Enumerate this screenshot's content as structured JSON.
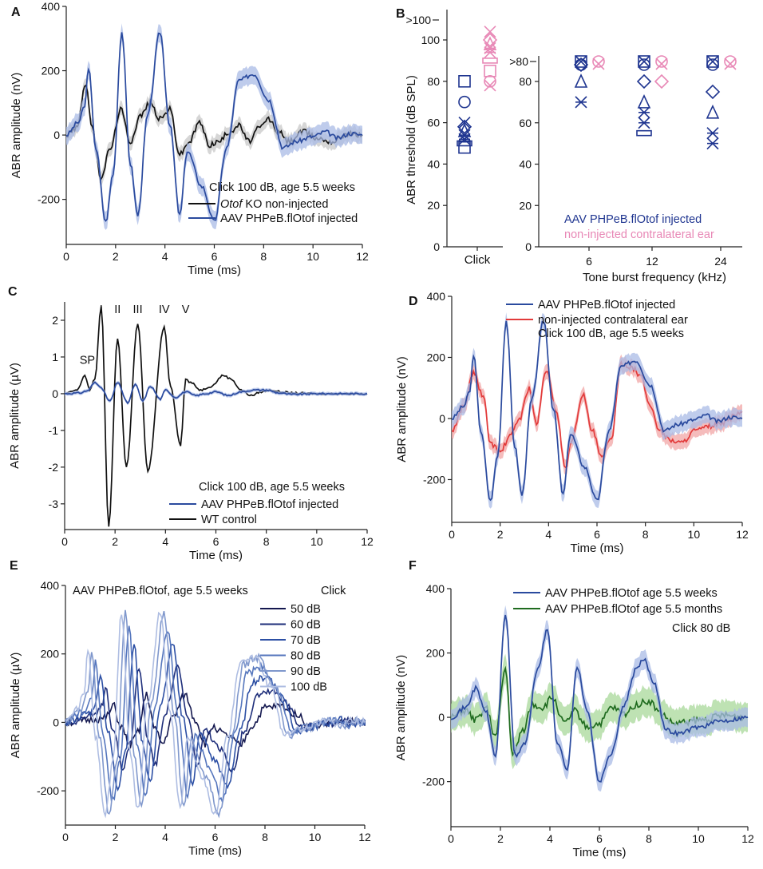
{
  "colors": {
    "injected": "#2a4a9e",
    "injected_band": "#a9bbe6",
    "ko": "#111111",
    "ko_band": "#c8c8c8",
    "contra": "#e23a3a",
    "contra_band": "#f2a6a6",
    "pink": "#e888b6",
    "navy": "#1f3590",
    "green": "#1f6b1f",
    "green_band": "#a8d89a",
    "db": [
      "#14184f",
      "#1e2e7a",
      "#2c4fa4",
      "#5576bd",
      "#7f97cc",
      "#aebde2"
    ]
  },
  "chart_data": [
    {
      "id": "A",
      "panel_label": "A",
      "type": "line",
      "xlabel": "Time (ms)",
      "ylabel": "ABR amplitude (nV)",
      "xlim": [
        0,
        12
      ],
      "ylim": [
        -340,
        400
      ],
      "xticks": [
        0,
        2,
        4,
        6,
        8,
        10,
        12
      ],
      "yticks": [
        -200,
        0,
        200,
        400
      ],
      "annotation": "Click 100 dB, age 5.5 weeks",
      "series": [
        {
          "name": "AAV PHPeB.flOtof injected",
          "role": "injected",
          "band": 28,
          "x": [
            0,
            0.5,
            0.75,
            0.9,
            1.2,
            1.6,
            1.9,
            2.25,
            2.6,
            2.9,
            3.3,
            3.8,
            4.2,
            4.6,
            4.9,
            5.5,
            6.0,
            6.5,
            7.0,
            7.6,
            8.2,
            8.8,
            9.3,
            10,
            10.5,
            11,
            11.5,
            12
          ],
          "y": [
            0,
            40,
            90,
            210,
            -40,
            -270,
            -120,
            320,
            -90,
            -250,
            60,
            320,
            30,
            -250,
            -50,
            -160,
            -270,
            -40,
            170,
            190,
            110,
            -40,
            -20,
            -5,
            10,
            -10,
            5,
            0
          ]
        },
        {
          "name_prefix": "Otof",
          "name_suffix": "KO non-injected",
          "role": "ko",
          "band": 22,
          "x": [
            0,
            0.4,
            0.8,
            1.0,
            1.4,
            1.8,
            2.2,
            2.6,
            3.0,
            3.4,
            3.8,
            4.2,
            4.6,
            5.0,
            5.4,
            5.8,
            6.2,
            6.6,
            7.0,
            7.4,
            7.8,
            8.2,
            8.6,
            9.0,
            9.6,
            10.2,
            10.8,
            11.4,
            12
          ],
          "y": [
            0,
            20,
            160,
            40,
            -130,
            -40,
            80,
            -20,
            60,
            100,
            50,
            80,
            -60,
            -20,
            40,
            -30,
            -20,
            10,
            30,
            -20,
            20,
            50,
            10,
            -20,
            10,
            -10,
            -20,
            5,
            0
          ]
        }
      ]
    },
    {
      "id": "B",
      "panel_label": "B",
      "type": "scatter",
      "ylabel": "ABR threshold (dB SPL)",
      "left_xlabel": "Click",
      "xlabel": "Tone burst frequency (kHz)",
      "left_yticks": [
        0,
        20,
        40,
        60,
        80,
        100
      ],
      "left_top_label": ">100",
      "right_yticks": [
        0,
        20,
        40,
        60,
        80
      ],
      "right_top_label": ">80",
      "xtick_labels": [
        "6",
        "12",
        "24"
      ],
      "legend": [
        "AAV PHPeB.flOtof injected",
        "non-injected contralateral ear"
      ],
      "click_injected": [
        80,
        70,
        60,
        58,
        56,
        54,
        52,
        50,
        48
      ],
      "click_contra": [
        104,
        100,
        98,
        96,
        94,
        90,
        85,
        80,
        78
      ],
      "tone_injected": {
        "6": [
          88,
          88,
          88,
          85,
          80,
          70
        ],
        "12": [
          88,
          88,
          85,
          80,
          70,
          65,
          60,
          55
        ],
        "24": [
          88,
          88,
          85,
          75,
          65,
          55,
          50
        ]
      },
      "tone_contra": {
        "6": [
          88,
          88
        ],
        "12": [
          88,
          88,
          80
        ],
        "24": [
          88,
          88
        ]
      }
    },
    {
      "id": "C",
      "panel_label": "C",
      "type": "line",
      "xlabel": "Time (ms)",
      "ylabel": "ABR amplitude (µV)",
      "xlim": [
        0,
        12
      ],
      "ylim": [
        -3.7,
        2.5
      ],
      "xticks": [
        0,
        2,
        4,
        6,
        8,
        10,
        12
      ],
      "yticks": [
        -3,
        -2,
        -1,
        0,
        1,
        2
      ],
      "annotation": "Click 100 dB, age 5.5 weeks",
      "peaks": {
        "SP": [
          0.9,
          0.55
        ],
        "I": [
          1.45,
          2.5
        ],
        "II": [
          2.1,
          1.6
        ],
        "III": [
          2.9,
          2.0
        ],
        "IV": [
          3.95,
          1.9
        ],
        "V": [
          4.8,
          1.3
        ]
      },
      "series": [
        {
          "name": "AAV PHPeB.flOtof injected",
          "role": "injected",
          "band": 0.05,
          "x": [
            0,
            0.6,
            0.9,
            1.2,
            1.4,
            1.8,
            2.1,
            2.5,
            2.8,
            3.1,
            3.4,
            3.8,
            4.0,
            4.4,
            4.8,
            5.2,
            5.6,
            6.0,
            6.5,
            7.0,
            7.5,
            8.0,
            8.5,
            9.0,
            10,
            11,
            12
          ],
          "y": [
            0,
            0.02,
            0.08,
            0.3,
            0.2,
            -0.2,
            0.3,
            -0.25,
            0.25,
            -0.2,
            0.2,
            -0.15,
            0.1,
            -0.1,
            0.05,
            -0.05,
            0,
            0.05,
            -0.05,
            0.05,
            0.1,
            0.1,
            0.02,
            -0.02,
            0,
            0,
            0
          ]
        },
        {
          "name": "WT control",
          "role": "ko",
          "band": 0,
          "x": [
            0,
            0.5,
            0.8,
            1.0,
            1.2,
            1.45,
            1.75,
            2.1,
            2.45,
            2.9,
            3.3,
            3.95,
            4.2,
            4.6,
            4.8,
            5.0,
            5.4,
            5.8,
            6.3,
            6.6,
            7.0,
            7.4,
            7.8,
            8.2,
            8.6,
            9.0,
            10,
            11,
            12
          ],
          "y": [
            0,
            0.1,
            0.5,
            0.1,
            0.4,
            2.4,
            -3.6,
            1.5,
            -2.0,
            1.9,
            -2.1,
            1.8,
            0.2,
            -1.4,
            0.4,
            0.3,
            0.1,
            0.2,
            0.5,
            0.4,
            0.1,
            -0.05,
            0.05,
            0.1,
            0.05,
            0.02,
            0,
            0,
            0
          ]
        }
      ]
    },
    {
      "id": "D",
      "panel_label": "D",
      "type": "line",
      "xlabel": "Time (ms)",
      "ylabel": "ABR amplitude (nV)",
      "xlim": [
        0,
        12
      ],
      "ylim": [
        -340,
        400
      ],
      "xticks": [
        0,
        2,
        4,
        6,
        8,
        10,
        12
      ],
      "yticks": [
        -200,
        0,
        200,
        400
      ],
      "annotation": "Click 100 dB, age 5.5 weeks",
      "series": [
        {
          "name": "AAV PHPeB.flOtof injected",
          "role": "injected",
          "band": 28,
          "x": [
            0,
            0.5,
            0.75,
            0.9,
            1.2,
            1.6,
            1.9,
            2.25,
            2.6,
            2.9,
            3.3,
            3.8,
            4.2,
            4.6,
            4.9,
            5.5,
            6.0,
            6.5,
            7.0,
            7.6,
            8.2,
            8.8,
            9.3,
            10,
            10.5,
            11,
            11.5,
            12
          ],
          "y": [
            0,
            40,
            90,
            210,
            -40,
            -270,
            -120,
            320,
            -90,
            -250,
            60,
            320,
            30,
            -250,
            -50,
            -160,
            -270,
            -40,
            170,
            190,
            110,
            -40,
            -20,
            -5,
            10,
            -10,
            5,
            0
          ]
        },
        {
          "name": "non-injected contralateral ear",
          "role": "contra",
          "band": 25,
          "x": [
            0,
            0.5,
            0.9,
            1.3,
            1.6,
            2.0,
            2.4,
            2.8,
            3.2,
            3.5,
            3.9,
            4.3,
            4.7,
            5.0,
            5.4,
            5.8,
            6.2,
            6.6,
            7.0,
            7.4,
            7.8,
            8.2,
            8.6,
            9.0,
            9.5,
            10,
            11,
            12
          ],
          "y": [
            -40,
            40,
            150,
            70,
            -80,
            -110,
            -60,
            0,
            100,
            -20,
            160,
            30,
            -160,
            -60,
            80,
            -40,
            -130,
            -60,
            180,
            170,
            140,
            40,
            -40,
            -70,
            -80,
            -40,
            -20,
            20
          ]
        }
      ]
    },
    {
      "id": "E",
      "panel_label": "E",
      "type": "line",
      "title": "AAV PHPeB.flOtof, age 5.5 weeks",
      "xlabel": "Time (ms)",
      "ylabel": "ABR amplitude (µV)",
      "xlim": [
        0,
        12
      ],
      "ylim": [
        -300,
        400
      ],
      "xticks": [
        0,
        2,
        4,
        6,
        8,
        10,
        12
      ],
      "yticks": [
        -200,
        0,
        200,
        400
      ],
      "legend_title": "Click",
      "series": [
        {
          "name": "50 dB",
          "shift": 1.0,
          "scale": 0.25
        },
        {
          "name": "60 dB",
          "shift": 0.7,
          "scale": 0.5
        },
        {
          "name": "70 dB",
          "shift": 0.5,
          "scale": 0.7
        },
        {
          "name": "80 dB",
          "shift": 0.3,
          "scale": 0.85
        },
        {
          "name": "90 dB",
          "shift": 0.15,
          "scale": 1.0
        },
        {
          "name": "100 dB",
          "shift": 0.0,
          "scale": 1.0
        }
      ],
      "base_x": [
        0,
        0.5,
        0.75,
        0.9,
        1.2,
        1.6,
        1.9,
        2.25,
        2.6,
        2.9,
        3.3,
        3.8,
        4.2,
        4.6,
        4.9,
        5.5,
        6.0,
        6.5,
        7.0,
        7.6,
        8.2,
        8.8,
        9.3,
        10,
        10.5,
        11,
        11.5,
        12
      ],
      "base_y": [
        0,
        40,
        90,
        210,
        -40,
        -270,
        -120,
        320,
        -90,
        -250,
        60,
        320,
        30,
        -250,
        -50,
        -160,
        -270,
        -40,
        170,
        190,
        110,
        -40,
        -20,
        -5,
        10,
        -10,
        5,
        0
      ]
    },
    {
      "id": "F",
      "panel_label": "F",
      "type": "line",
      "xlabel": "Time (ms)",
      "ylabel": "ABR amplitude (nV)",
      "xlim": [
        0,
        12
      ],
      "ylim": [
        -340,
        400
      ],
      "xticks": [
        0,
        2,
        4,
        6,
        8,
        10,
        12
      ],
      "yticks": [
        -200,
        0,
        200,
        400
      ],
      "annotation": "Click 80 dB",
      "series": [
        {
          "name": "AAV PHPeB.flOtof age 5.5 weeks",
          "role": "injected",
          "band": 30,
          "x": [
            0,
            0.6,
            1.0,
            1.4,
            1.8,
            2.2,
            2.6,
            3.0,
            3.5,
            3.9,
            4.3,
            4.7,
            5.1,
            5.5,
            6.0,
            6.5,
            7.0,
            7.5,
            7.8,
            8.2,
            8.7,
            9.2,
            10,
            11,
            12
          ],
          "y": [
            0,
            30,
            90,
            20,
            -120,
            320,
            -120,
            -80,
            150,
            270,
            -80,
            -160,
            160,
            20,
            -200,
            -110,
            40,
            150,
            180,
            110,
            -40,
            -50,
            -30,
            -10,
            0
          ]
        },
        {
          "name": "AAV PHPeB.flOtof age 5.5 months",
          "role": "green",
          "band": 45,
          "x": [
            0,
            0.6,
            1.0,
            1.4,
            1.8,
            2.2,
            2.5,
            2.9,
            3.3,
            3.7,
            4.1,
            4.6,
            5.0,
            5.5,
            6.0,
            6.5,
            7.0,
            7.5,
            8.0,
            8.5,
            9.0,
            10,
            11,
            12
          ],
          "y": [
            0,
            20,
            -10,
            30,
            -60,
            150,
            -120,
            -40,
            40,
            30,
            60,
            -20,
            20,
            -30,
            -20,
            30,
            10,
            40,
            50,
            10,
            -20,
            -10,
            5,
            0
          ]
        }
      ]
    }
  ]
}
